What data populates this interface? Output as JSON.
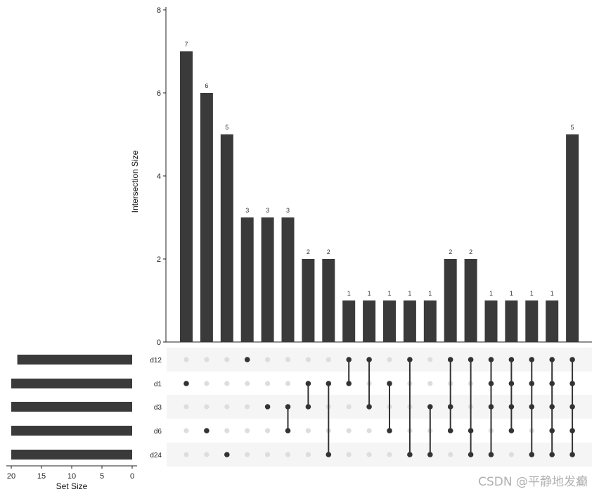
{
  "chart_data": {
    "type": "upset",
    "intersection_axis": {
      "ylabel": "Intersection Size",
      "ylim": [
        0,
        8
      ],
      "ticks": [
        0,
        2,
        4,
        6,
        8
      ]
    },
    "set_size_axis": {
      "xlabel": "Set Size",
      "xlim": [
        20,
        0
      ],
      "ticks": [
        20,
        15,
        10,
        5,
        0
      ]
    },
    "sets": [
      {
        "name": "d12",
        "size": 19
      },
      {
        "name": "d1",
        "size": 20
      },
      {
        "name": "d3",
        "size": 20
      },
      {
        "name": "d6",
        "size": 20
      },
      {
        "name": "d24",
        "size": 20
      }
    ],
    "intersections": [
      {
        "sets": [
          "d1"
        ],
        "value": 7
      },
      {
        "sets": [
          "d6"
        ],
        "value": 6
      },
      {
        "sets": [
          "d24"
        ],
        "value": 5
      },
      {
        "sets": [
          "d12"
        ],
        "value": 3
      },
      {
        "sets": [
          "d3"
        ],
        "value": 3
      },
      {
        "sets": [
          "d3",
          "d6"
        ],
        "value": 3
      },
      {
        "sets": [
          "d1",
          "d3"
        ],
        "value": 2
      },
      {
        "sets": [
          "d1",
          "d24"
        ],
        "value": 2
      },
      {
        "sets": [
          "d12",
          "d1"
        ],
        "value": 1
      },
      {
        "sets": [
          "d12",
          "d3"
        ],
        "value": 1
      },
      {
        "sets": [
          "d1",
          "d6"
        ],
        "value": 1
      },
      {
        "sets": [
          "d12",
          "d24"
        ],
        "value": 1
      },
      {
        "sets": [
          "d3",
          "d24"
        ],
        "value": 1
      },
      {
        "sets": [
          "d12",
          "d3",
          "d6"
        ],
        "value": 2
      },
      {
        "sets": [
          "d12",
          "d6",
          "d24"
        ],
        "value": 2
      },
      {
        "sets": [
          "d12",
          "d1",
          "d3",
          "d24"
        ],
        "value": 1
      },
      {
        "sets": [
          "d12",
          "d1",
          "d3",
          "d6"
        ],
        "value": 1
      },
      {
        "sets": [
          "d12",
          "d1",
          "d3",
          "d24"
        ],
        "value": 1
      },
      {
        "sets": [
          "d12",
          "d1",
          "d3",
          "d6",
          "d24"
        ],
        "value": 1
      },
      {
        "sets": [
          "d12",
          "d1",
          "d3",
          "d6",
          "d24"
        ],
        "value": 5
      }
    ],
    "bar_color": "#3a3a3a",
    "dot_active_color": "#333333",
    "dot_inactive_color": "#dddddd",
    "stripe_color": "#f5f5f5"
  },
  "watermark": "CSDN @平静地发癫"
}
